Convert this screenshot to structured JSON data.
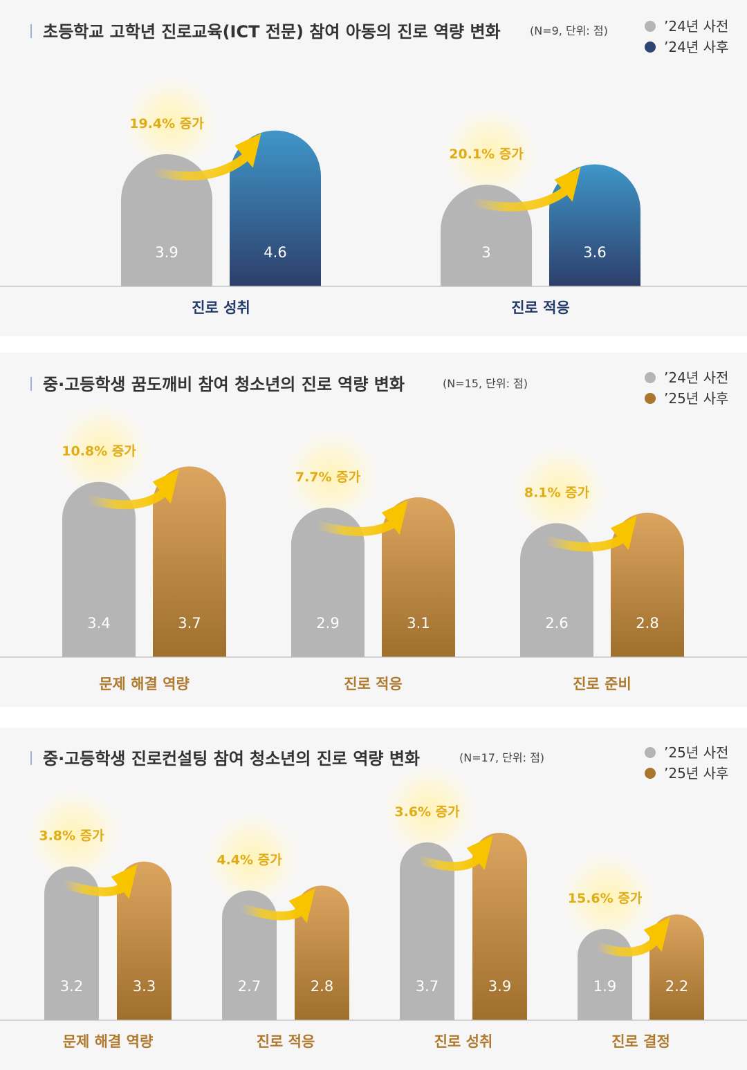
{
  "chart_data": [
    {
      "type": "bar",
      "title": "초등학교 고학년 진로교육(ICT 전문) 참여 아동의 진로 역량 변화",
      "note": "(N=9, 단위: 점)",
      "categories": [
        "진로 성취",
        "진로 적응"
      ],
      "series": [
        {
          "name": "’24년 사전",
          "values": [
            3.9,
            3.0
          ],
          "color": "#b5b5b5"
        },
        {
          "name": "’24년 사후",
          "values": [
            4.6,
            3.6
          ],
          "color": "#2e4573"
        }
      ],
      "increases": [
        "19.4% 증가",
        "20.1% 증가"
      ],
      "category_color": "#233a6b",
      "legend_position": "top-right"
    },
    {
      "type": "bar",
      "title": "중·고등학생 꿈도깨비 참여 청소년의 진로 역량 변화",
      "note": "(N=15, 단위: 점)",
      "categories": [
        "문제 해결 역량",
        "진로 적응",
        "진로 준비"
      ],
      "series": [
        {
          "name": "’24년 사전",
          "values": [
            3.4,
            2.9,
            2.6
          ],
          "color": "#b5b5b5"
        },
        {
          "name": "’25년 사후",
          "values": [
            3.7,
            3.1,
            2.8
          ],
          "color": "#a8762e"
        }
      ],
      "increases": [
        "10.8% 증가",
        "7.7% 증가",
        "8.1% 증가"
      ],
      "category_color": "#b07a2e",
      "legend_position": "top-right"
    },
    {
      "type": "bar",
      "title": "중·고등학생 진로컨설팅 참여 청소년의 진로 역량 변화",
      "note": "(N=17, 단위: 점)",
      "categories": [
        "문제 해결 역량",
        "진로 적응",
        "진로 성취",
        "진로 결정"
      ],
      "series": [
        {
          "name": "’25년 사전",
          "values": [
            3.2,
            2.7,
            3.7,
            1.9
          ],
          "color": "#b5b5b5"
        },
        {
          "name": "’25년 사후",
          "values": [
            3.3,
            2.8,
            3.9,
            2.2
          ],
          "color": "#a8762e"
        }
      ],
      "increases": [
        "3.8% 증가",
        "4.4% 증가",
        "3.6% 증가",
        "15.6% 증가"
      ],
      "category_color": "#b07a2e",
      "legend_position": "top-right"
    }
  ]
}
